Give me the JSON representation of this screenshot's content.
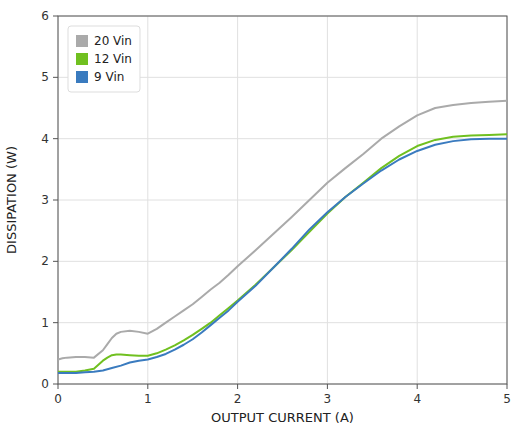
{
  "chart_data": {
    "type": "line",
    "xlabel": "OUTPUT CURRENT (A)",
    "ylabel": "DISSIPATION (W)",
    "xlim": [
      0,
      5
    ],
    "ylim": [
      0,
      6
    ],
    "xticks": [
      0,
      1,
      2,
      3,
      4,
      5
    ],
    "yticks": [
      0,
      1,
      2,
      3,
      4,
      5,
      6
    ],
    "grid": true,
    "legend": "upper left",
    "series": [
      {
        "name": "20 Vin",
        "color": "#aaaaaa",
        "x": [
          0.0,
          0.05,
          0.1,
          0.2,
          0.3,
          0.4,
          0.5,
          0.55,
          0.6,
          0.65,
          0.7,
          0.8,
          0.9,
          1.0,
          1.1,
          1.2,
          1.3,
          1.4,
          1.5,
          1.6,
          1.7,
          1.8,
          1.9,
          2.0,
          2.2,
          2.4,
          2.6,
          2.8,
          3.0,
          3.2,
          3.4,
          3.6,
          3.8,
          4.0,
          4.2,
          4.4,
          4.6,
          4.8,
          5.0
        ],
        "values": [
          0.4,
          0.42,
          0.43,
          0.44,
          0.44,
          0.43,
          0.55,
          0.65,
          0.75,
          0.82,
          0.85,
          0.87,
          0.85,
          0.82,
          0.9,
          1.0,
          1.1,
          1.2,
          1.3,
          1.42,
          1.54,
          1.65,
          1.78,
          1.92,
          2.18,
          2.45,
          2.72,
          3.0,
          3.28,
          3.52,
          3.75,
          4.0,
          4.2,
          4.38,
          4.5,
          4.55,
          4.58,
          4.6,
          4.62
        ]
      },
      {
        "name": "12 Vin",
        "color": "#70c020",
        "x": [
          0.0,
          0.05,
          0.1,
          0.2,
          0.3,
          0.4,
          0.5,
          0.55,
          0.6,
          0.65,
          0.7,
          0.8,
          0.9,
          1.0,
          1.1,
          1.2,
          1.3,
          1.4,
          1.5,
          1.6,
          1.7,
          1.8,
          1.9,
          2.0,
          2.2,
          2.4,
          2.6,
          2.8,
          3.0,
          3.2,
          3.4,
          3.6,
          3.8,
          4.0,
          4.2,
          4.4,
          4.6,
          4.8,
          5.0
        ],
        "values": [
          0.2,
          0.2,
          0.2,
          0.2,
          0.22,
          0.25,
          0.38,
          0.43,
          0.47,
          0.48,
          0.48,
          0.47,
          0.46,
          0.46,
          0.5,
          0.56,
          0.63,
          0.71,
          0.8,
          0.9,
          1.0,
          1.12,
          1.24,
          1.36,
          1.62,
          1.9,
          2.18,
          2.48,
          2.78,
          3.05,
          3.28,
          3.52,
          3.72,
          3.88,
          3.98,
          4.03,
          4.05,
          4.06,
          4.07
        ]
      },
      {
        "name": "9 Vin",
        "color": "#3a7bbf",
        "x": [
          0.0,
          0.05,
          0.1,
          0.2,
          0.3,
          0.4,
          0.5,
          0.6,
          0.7,
          0.8,
          0.9,
          1.0,
          1.1,
          1.2,
          1.3,
          1.4,
          1.5,
          1.6,
          1.7,
          1.8,
          1.9,
          2.0,
          2.2,
          2.4,
          2.6,
          2.8,
          3.0,
          3.2,
          3.4,
          3.6,
          3.8,
          4.0,
          4.2,
          4.4,
          4.6,
          4.8,
          5.0
        ],
        "values": [
          0.18,
          0.18,
          0.18,
          0.18,
          0.19,
          0.2,
          0.22,
          0.26,
          0.3,
          0.35,
          0.38,
          0.4,
          0.44,
          0.49,
          0.56,
          0.64,
          0.73,
          0.84,
          0.96,
          1.08,
          1.2,
          1.34,
          1.6,
          1.9,
          2.2,
          2.52,
          2.8,
          3.05,
          3.27,
          3.48,
          3.66,
          3.8,
          3.9,
          3.96,
          3.99,
          4.0,
          4.0
        ]
      }
    ]
  }
}
